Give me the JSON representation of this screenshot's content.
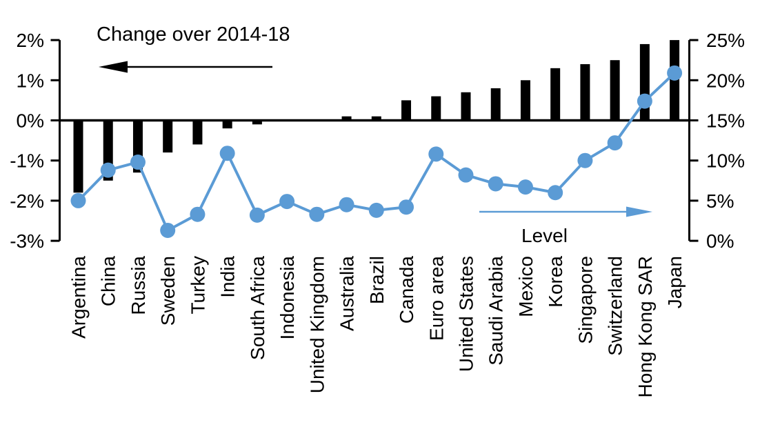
{
  "chart_data": {
    "type": "bar+line",
    "title": "",
    "categories": [
      "Argentina",
      "China",
      "Russia",
      "Sweden",
      "Turkey",
      "India",
      "South Africa",
      "Indonesia",
      "United Kingdom",
      "Australia",
      "Brazil",
      "Canada",
      "Euro area",
      "United States",
      "Saudi Arabia",
      "Mexico",
      "Korea",
      "Singapore",
      "Switzerland",
      "Hong Kong SAR",
      "Japan"
    ],
    "series": [
      {
        "name": "Change over 2014-18",
        "type": "bar",
        "axis": "left",
        "color": "#000000",
        "values": [
          -1.8,
          -1.5,
          -1.3,
          -0.8,
          -0.6,
          -0.2,
          -0.1,
          0,
          0,
          0.1,
          0.1,
          0.5,
          0.6,
          0.7,
          0.8,
          1.0,
          1.3,
          1.4,
          1.5,
          1.9,
          2.0
        ]
      },
      {
        "name": "Level",
        "type": "line",
        "axis": "right",
        "color": "#5b9bd5",
        "values": [
          5.0,
          8.8,
          9.8,
          1.3,
          3.3,
          10.9,
          3.2,
          4.9,
          3.3,
          4.5,
          3.8,
          4.2,
          10.8,
          8.2,
          7.1,
          6.7,
          6.0,
          10.0,
          12.2,
          17.4,
          20.9
        ]
      }
    ],
    "left_axis": {
      "ticks": [
        "2%",
        "1%",
        "0%",
        "-1%",
        "-2%",
        "-3%"
      ],
      "values": [
        2,
        1,
        0,
        -1,
        -2,
        -3
      ],
      "range": [
        -3,
        2
      ]
    },
    "right_axis": {
      "ticks": [
        "25%",
        "20%",
        "15%",
        "10%",
        "5%",
        "0%"
      ],
      "values": [
        25,
        20,
        15,
        10,
        5,
        0
      ],
      "range": [
        0,
        25
      ]
    },
    "legend": {
      "bar_arrow_direction": "left",
      "line_arrow_direction": "right"
    },
    "grid": "off"
  }
}
